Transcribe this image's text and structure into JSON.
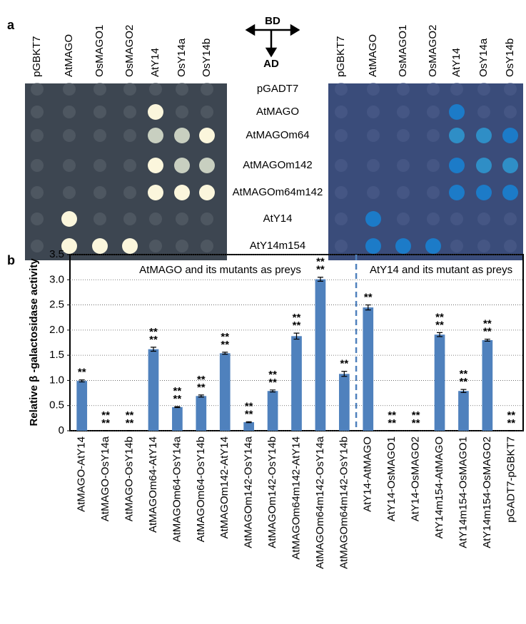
{
  "panel_labels": [
    "a",
    "b"
  ],
  "plate": {
    "columns": [
      "pGBKT7",
      "AtMAGO",
      "OsMAGO1",
      "OsMAGO2",
      "AtY14",
      "OsY14a",
      "OsY14b"
    ],
    "rows": [
      "pGADT7",
      "AtMAGO",
      "AtMAGOm64",
      "AtMAGOm142",
      "AtMAGOm64m142",
      "AtY14",
      "AtY14m154"
    ],
    "bd_label": "BD",
    "ad_label": "AD"
  },
  "chart_data": {
    "type": "bar",
    "y_label": "Relative β -galactosidase activity",
    "annotations": [
      "AtMAGO and its mutants as preys",
      "AtY14 and its mutant as preys"
    ],
    "categories": [
      "AtMAGO-AtY14",
      "AtMAGO-OsY14a",
      "AtMAGO-OsY14b",
      "AtMAGOm64-AtY14",
      "AtMAGOm64-OsY14a",
      "AtMAGOm64-OsY14b",
      "AtMAGOm142-AtY14",
      "AtMAGOm142-OsY14a",
      "AtMAGOm142-OsY14b",
      "AtMAGOm64m142-AtY14",
      "AtMAGOm64m142-OsY14a",
      "AtMAGOm64m142-OsY14b",
      "AtY14-AtMAGO",
      "AtY14-OsMAGO1",
      "AtY14-OsMAGO2",
      "AtY14m154-AtMAGO",
      "AtY14m154-OsMAGO1",
      "AtY14m154-OsMAGO2",
      "pGADT7-pGBKT7"
    ],
    "values": [
      0.99,
      0,
      0,
      1.62,
      0.47,
      0.69,
      1.54,
      0.17,
      0.79,
      1.88,
      3.01,
      1.13,
      2.45,
      0,
      0,
      1.91,
      0.79,
      1.8,
      0
    ],
    "errors": [
      0.02,
      0,
      0,
      0.04,
      0.01,
      0.02,
      0.02,
      0.01,
      0.02,
      0.06,
      0.04,
      0.05,
      0.05,
      0,
      0,
      0.04,
      0.03,
      0.02,
      0
    ],
    "sig_black": [
      null,
      "**",
      "**",
      "**",
      "**",
      "**",
      "**",
      "**",
      "**",
      "**",
      "**",
      null,
      "**",
      "**",
      "**",
      "**",
      "**",
      "**",
      "**"
    ],
    "sig_blue": [
      "**",
      "**",
      "**",
      "**",
      "**",
      "**",
      "**",
      "**",
      "**",
      "**",
      "**",
      "**",
      null,
      "**",
      "**",
      "**",
      "**",
      "**",
      "**"
    ],
    "color": "#4f81bd",
    "sig_colors": [
      "#000000",
      "#2e75b6"
    ],
    "ylim": [
      0,
      3.5
    ],
    "yticks": [
      0,
      0.5,
      {
        "value": 1,
        "label": "1.0"
      },
      1.5,
      {
        "value": 2,
        "label": "2.0"
      },
      2.5,
      {
        "value": 3,
        "label": "3.0"
      },
      3.5
    ],
    "grid": true
  }
}
